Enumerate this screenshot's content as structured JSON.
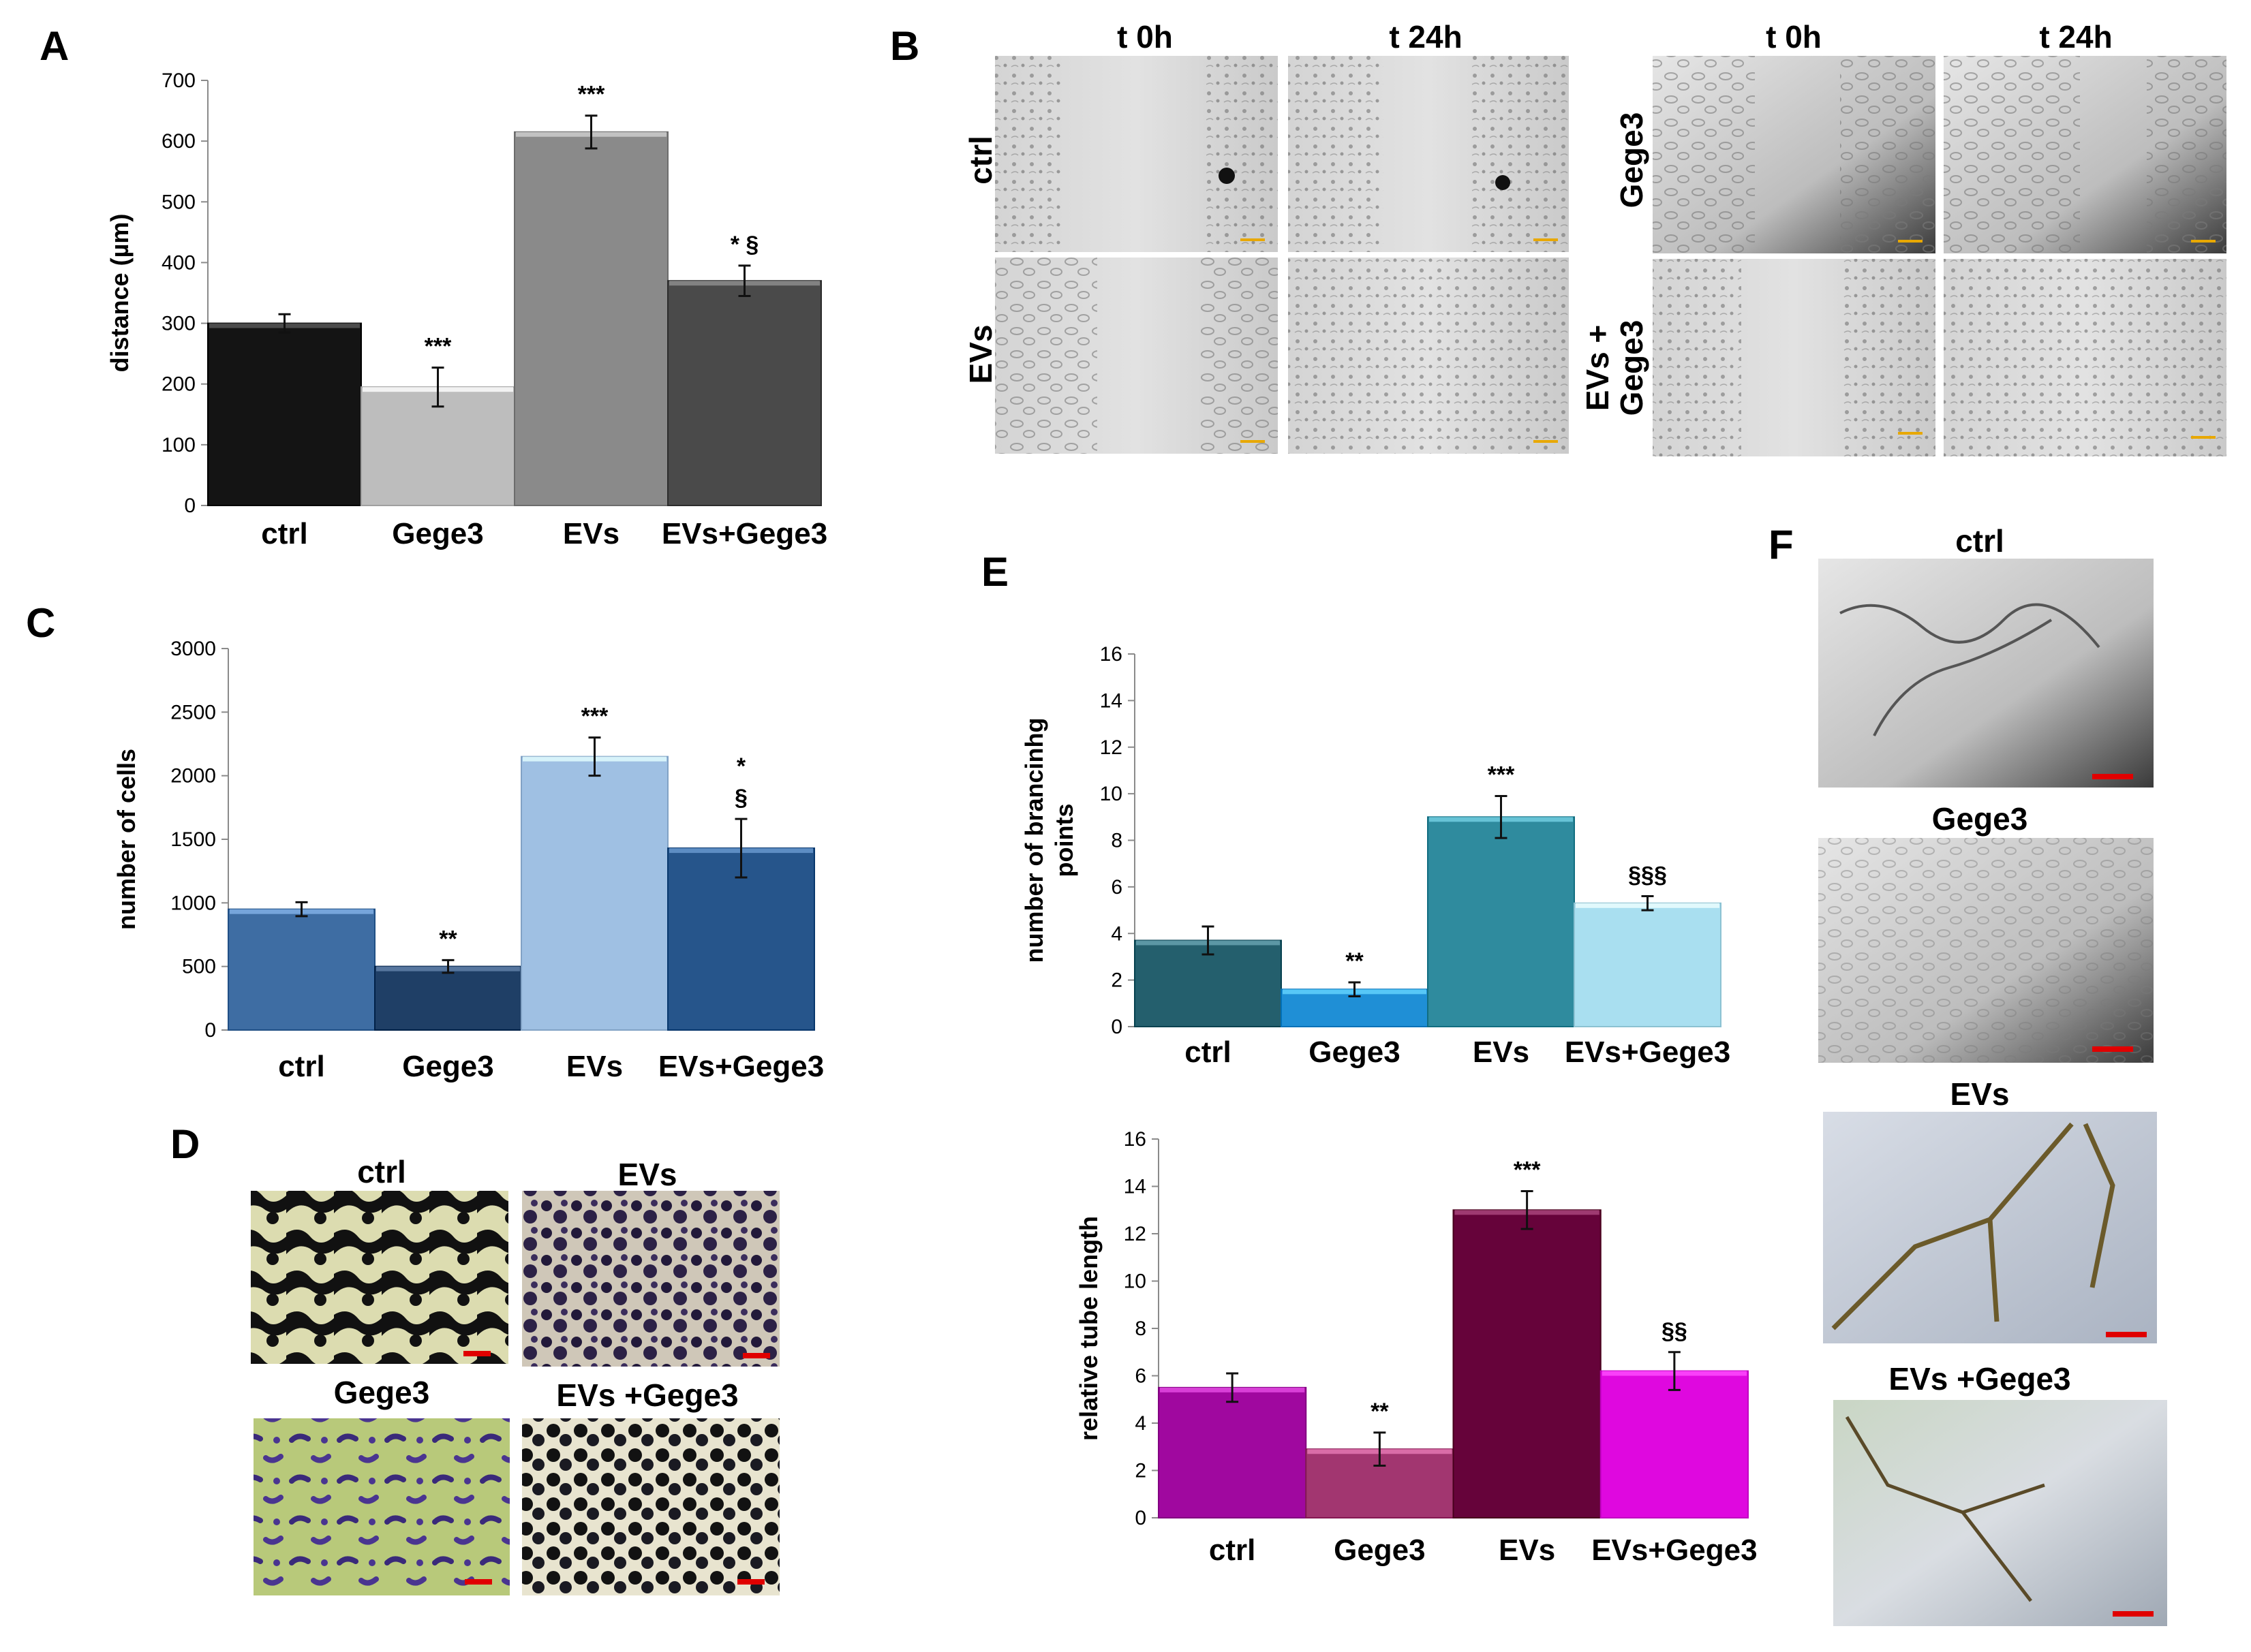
{
  "panel_letters": {
    "A": "A",
    "B": "B",
    "C": "C",
    "D": "D",
    "E": "E",
    "F": "F"
  },
  "colors": {
    "A": [
      "#141414",
      "#bdbdbd",
      "#8a8a8a",
      "#4a4a4a"
    ],
    "C": [
      "#3e6da3",
      "#1f3f66",
      "#9fc0e3",
      "#26558b"
    ],
    "E1": [
      "#245f6d",
      "#1f8fd6",
      "#2f8b9e",
      "#a9dff0"
    ],
    "E2": [
      "#a0089f",
      "#a23670",
      "#66033a",
      "#df08df"
    ],
    "scale_yellow": "#e8a800",
    "scale_red": "#e00000"
  },
  "chart_data": [
    {
      "id": "A",
      "type": "bar",
      "title": "",
      "xlabel": "",
      "ylabel": "distance (µm)",
      "categories": [
        "ctrl",
        "Gege3",
        "EVs",
        "EVs+Gege3"
      ],
      "values": [
        300,
        195,
        615,
        370
      ],
      "errors": [
        15,
        32,
        27,
        25
      ],
      "significance": [
        "",
        "***",
        "***",
        "* §"
      ],
      "ylim": [
        0,
        700
      ],
      "yticks": [
        0,
        100,
        200,
        300,
        400,
        500,
        600,
        700
      ]
    },
    {
      "id": "C",
      "type": "bar",
      "title": "",
      "xlabel": "",
      "ylabel": "number of cells",
      "categories": [
        "ctrl",
        "Gege3",
        "EVs",
        "EVs+Gege3"
      ],
      "values": [
        950,
        500,
        2150,
        1430
      ],
      "errors": [
        55,
        50,
        150,
        230
      ],
      "significance": [
        "",
        "**",
        "***",
        "*\n§"
      ],
      "ylim": [
        0,
        3000
      ],
      "yticks": [
        0,
        500,
        1000,
        1500,
        2000,
        2500,
        3000
      ]
    },
    {
      "id": "E_branching",
      "type": "bar",
      "title": "",
      "xlabel": "",
      "ylabel": "number of brancinhg points",
      "categories": [
        "ctrl",
        "Gege3",
        "EVs",
        "EVs+Gege3"
      ],
      "values": [
        3.7,
        1.6,
        9.0,
        5.3
      ],
      "errors": [
        0.6,
        0.3,
        0.9,
        0.3
      ],
      "significance": [
        "",
        "**",
        "***",
        "§§§"
      ],
      "ylim": [
        0,
        16
      ],
      "yticks": [
        0,
        2,
        4,
        6,
        8,
        10,
        12,
        14,
        16
      ]
    },
    {
      "id": "E_tube",
      "type": "bar",
      "title": "",
      "xlabel": "",
      "ylabel": "relative tube length",
      "categories": [
        "ctrl",
        "Gege3",
        "EVs",
        "EVs+Gege3"
      ],
      "values": [
        5.5,
        2.9,
        13.0,
        6.2
      ],
      "errors": [
        0.6,
        0.7,
        0.8,
        0.8
      ],
      "significance": [
        "",
        "**",
        "***",
        "§§"
      ],
      "ylim": [
        0,
        16
      ],
      "yticks": [
        0,
        2,
        4,
        6,
        8,
        10,
        12,
        14,
        16
      ]
    }
  ],
  "panel_B": {
    "col_headers": [
      "t 0h",
      "t 24h",
      "t 0h",
      "t 24h"
    ],
    "row_labels": [
      "ctrl",
      "EVs",
      "Gege3",
      "EVs +\nGege3"
    ]
  },
  "panel_D": {
    "titles": [
      "ctrl",
      "EVs",
      "Gege3",
      "EVs +Gege3"
    ]
  },
  "panel_F": {
    "titles": [
      "ctrl",
      "Gege3",
      "EVs",
      "EVs +Gege3"
    ]
  }
}
